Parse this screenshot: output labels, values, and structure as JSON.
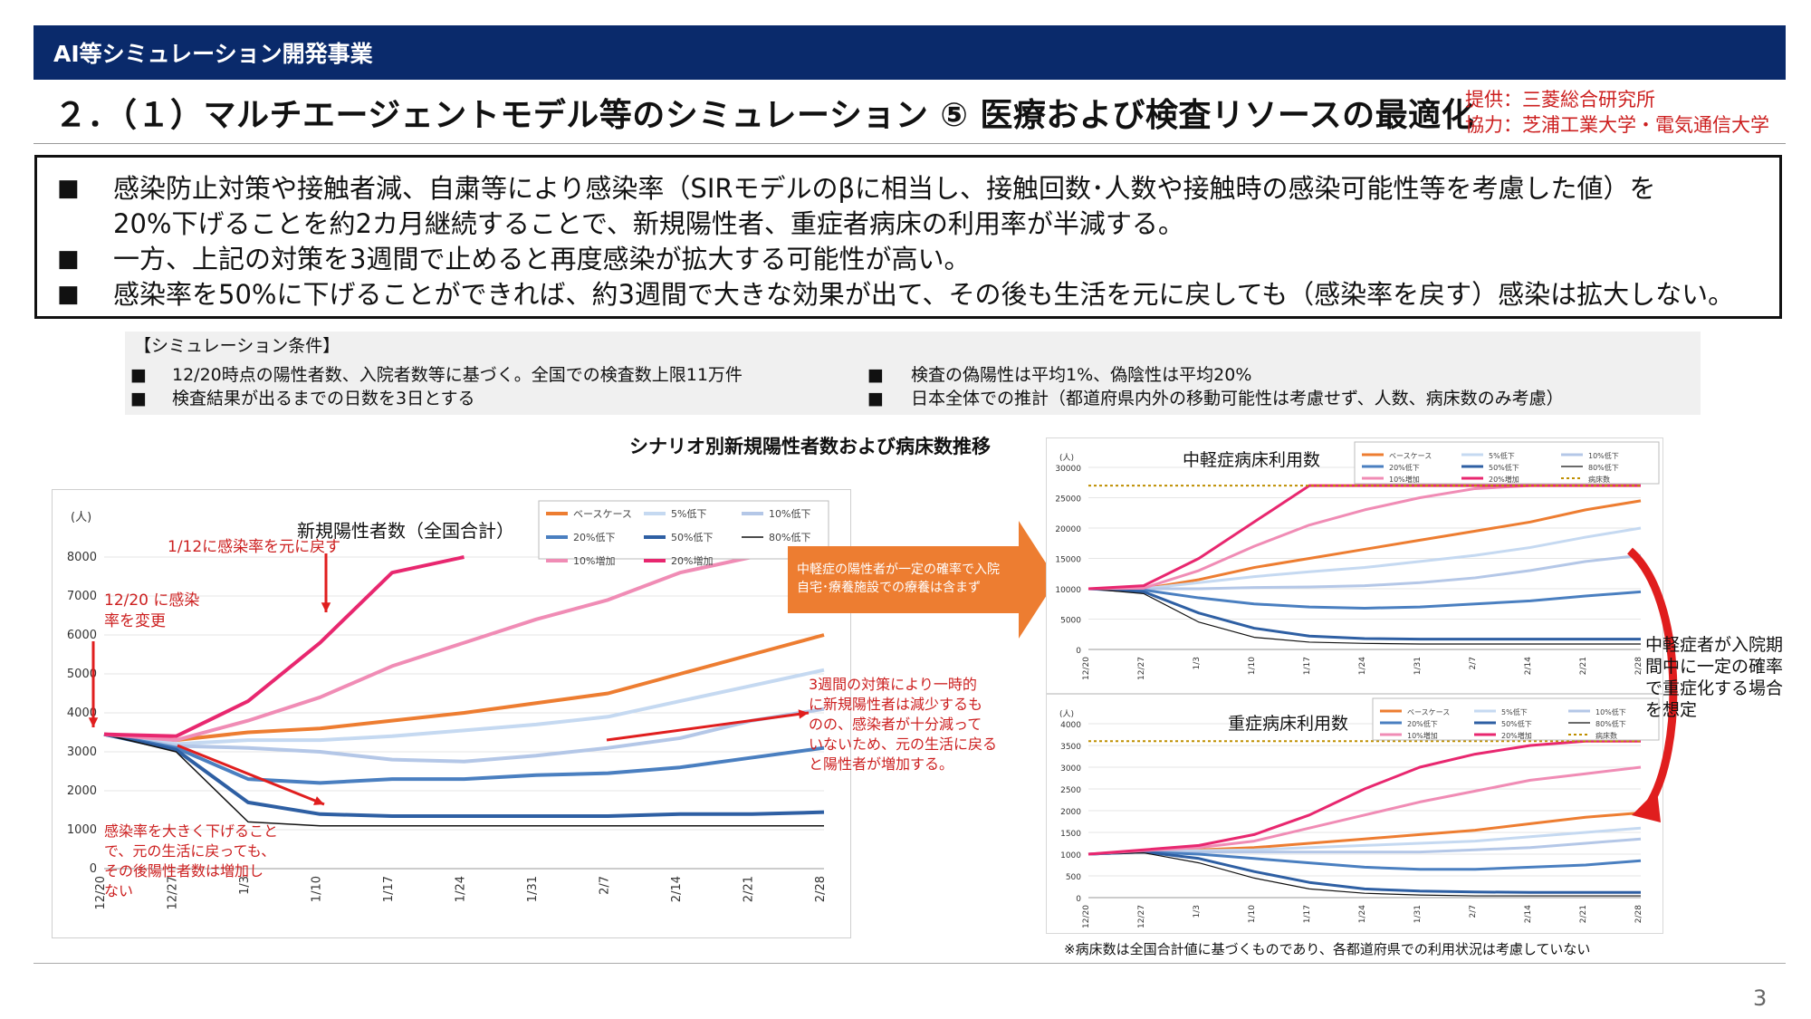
{
  "header": {
    "label": "AI等シミュレーション開発事業"
  },
  "title": "２．（１）マルチエージェントモデル等のシミュレーション ⑤ 医療および検査リソースの最適化",
  "provider": {
    "line1": "提供：三菱総合研究所",
    "line2": "協力：芝浦工業大学・電気通信大学"
  },
  "summary": {
    "bullet": "■",
    "b1_line1": "感染防止対策や接触者減、自粛等により感染率（SIRモデルのβに相当し、接触回数･人数や接触時の感染可能性等を考慮した値）を",
    "b1_line2": "20%下げることを約2カ月継続することで、新規陽性者、重症者病床の利用率が半減する。",
    "b2": "一方、上記の対策を3週間で止めると再度感染が拡大する可能性が高い。",
    "b3": "感染率を50%に下げることができれば、約3週間で大きな効果が出て、その後も生活を元に戻しても（感染率を戻す）感染は拡大しない。"
  },
  "conditions": {
    "heading": "【シミュレーション条件】",
    "c1": "12/20時点の陽性者数、入院者数等に基づく。全国での検査数上限11万件",
    "c2": "検査結果が出るまでの日数を3日とする",
    "c3": "検査の偽陽性は平均1%、偽陰性は平均20%",
    "c4": "日本全体での推計（都道府県内外の移動可能性は考慮せず、人数、病床数のみ考慮）"
  },
  "scenario_title": "シナリオ別新規陽性者数および病床数推移",
  "arrow_text": {
    "line1": "中軽症の陽性者が一定の確率で入院",
    "line2": "自宅･療養施設での療養は含まず"
  },
  "annotations": {
    "a1": "1/12に感染率を元に戻す",
    "a2_line1": "12/20 に感染",
    "a2_line2": "率を変更",
    "a3_line1": "3週間の対策により一時的",
    "a3_line2": "に新規陽性者は減少するも",
    "a3_line3": "のの、感染者が十分減って",
    "a3_line4": "いないため、元の生活に戻る",
    "a3_line5": "と陽性者が増加する。",
    "a4_line1": "感染率を大きく下げること",
    "a4_line2": "で、元の生活に戻っても、",
    "a4_line3": "その後陽性者数は増加し",
    "a4_line4": "ない"
  },
  "right_note": {
    "line1": "中軽症者が入院期",
    "line2": "間中に一定の確率",
    "line3": "で重症化する場合",
    "line4": "を想定"
  },
  "footnote": "※病床数は全国合計値に基づくものであり、各都道府県での利用状況は考慮していない",
  "page_number": "3",
  "colors": {
    "header_bg": "#0a2a6b",
    "annotation_red": "#cc1f1f",
    "arrow_orange": "#ed7d31"
  },
  "chart_data": [
    {
      "type": "line",
      "title": "新規陽性者数（全国合計）",
      "ylabel": "(人)",
      "ylim": [
        0,
        8000
      ],
      "yticks": [
        "0",
        "1000",
        "2000",
        "3000",
        "4000",
        "5000",
        "6000",
        "7000",
        "8000"
      ],
      "x_ticks": [
        "12/20",
        "12/27",
        "1/3",
        "1/10",
        "1/17",
        "1/24",
        "1/31",
        "2/7",
        "2/14",
        "2/21",
        "2/28"
      ],
      "series": [
        {
          "name": "ベースケース",
          "color": "#ed7d31",
          "width": 4,
          "values": [
            3450,
            3300,
            3500,
            3600,
            3800,
            4000,
            4250,
            4500,
            5000,
            5500,
            6000
          ]
        },
        {
          "name": "5%低下",
          "color": "#c5d9f1",
          "width": 4,
          "values": [
            3450,
            3200,
            3300,
            3300,
            3400,
            3550,
            3700,
            3900,
            4300,
            4700,
            5100
          ]
        },
        {
          "name": "10%低下",
          "color": "#b4c7e7",
          "width": 4,
          "values": [
            3450,
            3150,
            3100,
            3000,
            2800,
            2750,
            2900,
            3100,
            3350,
            3800,
            4100
          ]
        },
        {
          "name": "20%低下",
          "color": "#4a7fc0",
          "width": 4,
          "values": [
            3450,
            3100,
            2300,
            2200,
            2300,
            2300,
            2400,
            2450,
            2600,
            2850,
            3100
          ]
        },
        {
          "name": "50%低下",
          "color": "#2e5fa3",
          "width": 4,
          "values": [
            3450,
            3050,
            1700,
            1400,
            1350,
            1350,
            1350,
            1350,
            1400,
            1400,
            1450
          ]
        },
        {
          "name": "80%低下",
          "color": "#111111",
          "width": 1.5,
          "values": [
            3450,
            3000,
            1200,
            1100,
            1100,
            1100,
            1100,
            1100,
            1100,
            1100,
            1100
          ]
        },
        {
          "name": "10%増加",
          "color": "#f08cb5",
          "width": 4,
          "values": [
            3450,
            3300,
            3800,
            4400,
            5200,
            5800,
            6400,
            6900,
            7600,
            8000,
            null
          ]
        },
        {
          "name": "20%増加",
          "color": "#e8276f",
          "width": 4,
          "values": [
            3450,
            3400,
            4300,
            5800,
            7600,
            8000,
            null,
            null,
            null,
            null,
            null
          ]
        }
      ]
    },
    {
      "type": "line",
      "title": "中軽症病床利用数",
      "ylabel": "(人)",
      "ylim": [
        0,
        30000
      ],
      "yticks": [
        "0",
        "5000",
        "10000",
        "15000",
        "20000",
        "25000",
        "30000"
      ],
      "x_ticks": [
        "12/20",
        "12/27",
        "1/3",
        "1/10",
        "1/17",
        "1/24",
        "1/31",
        "2/7",
        "2/14",
        "2/21",
        "2/28"
      ],
      "capacity": 27000,
      "series": [
        {
          "name": "ベースケース",
          "color": "#ed7d31",
          "width": 3,
          "values": [
            10000,
            10000,
            11500,
            13500,
            15000,
            16500,
            18000,
            19500,
            21000,
            23000,
            24500
          ]
        },
        {
          "name": "5%低下",
          "color": "#c5d9f1",
          "width": 3,
          "values": [
            10000,
            10000,
            11000,
            12000,
            12800,
            13500,
            14500,
            15500,
            16800,
            18500,
            20000
          ]
        },
        {
          "name": "10%低下",
          "color": "#b4c7e7",
          "width": 3,
          "values": [
            10000,
            10000,
            10000,
            10200,
            10300,
            10500,
            11000,
            11800,
            13000,
            14500,
            15500
          ]
        },
        {
          "name": "20%低下",
          "color": "#4a7fc0",
          "width": 3,
          "values": [
            10000,
            9800,
            8500,
            7500,
            7000,
            6800,
            7000,
            7500,
            8000,
            8800,
            9500
          ]
        },
        {
          "name": "50%低下",
          "color": "#2e5fa3",
          "width": 3,
          "values": [
            10000,
            9500,
            6000,
            3500,
            2200,
            1800,
            1700,
            1700,
            1700,
            1700,
            1700
          ]
        },
        {
          "name": "80%低下",
          "color": "#111111",
          "width": 1.2,
          "values": [
            10000,
            9200,
            4500,
            2000,
            1200,
            1000,
            900,
            900,
            900,
            900,
            900
          ]
        },
        {
          "name": "10%増加",
          "color": "#f08cb5",
          "width": 3,
          "values": [
            10000,
            10100,
            13000,
            17000,
            20500,
            23000,
            25000,
            26500,
            27000,
            null,
            null
          ]
        },
        {
          "name": "20%増加",
          "color": "#e8276f",
          "width": 3,
          "values": [
            10000,
            10500,
            15000,
            21000,
            27000,
            27000,
            27000,
            27000,
            27000,
            27000,
            27000
          ]
        },
        {
          "name": "病床数",
          "color": "#bf8f00",
          "width": 2,
          "dash": true,
          "values": [
            27000,
            27000,
            27000,
            27000,
            27000,
            27000,
            27000,
            27000,
            27000,
            27000,
            27000
          ]
        }
      ]
    },
    {
      "type": "line",
      "title": "重症病床利用数",
      "ylabel": "(人)",
      "ylim": [
        0,
        4000
      ],
      "yticks": [
        "0",
        "500",
        "1000",
        "1500",
        "2000",
        "2500",
        "3000",
        "3500",
        "4000"
      ],
      "x_ticks": [
        "12/20",
        "12/27",
        "1/3",
        "1/10",
        "1/17",
        "1/24",
        "1/31",
        "2/7",
        "2/14",
        "2/21",
        "2/28"
      ],
      "capacity": 3600,
      "series": [
        {
          "name": "ベースケース",
          "color": "#ed7d31",
          "width": 3,
          "values": [
            1000,
            1050,
            1100,
            1150,
            1250,
            1350,
            1450,
            1550,
            1700,
            1850,
            1950
          ]
        },
        {
          "name": "5%低下",
          "color": "#c5d9f1",
          "width": 3,
          "values": [
            1000,
            1050,
            1080,
            1100,
            1150,
            1200,
            1250,
            1300,
            1400,
            1500,
            1600
          ]
        },
        {
          "name": "10%低下",
          "color": "#b4c7e7",
          "width": 3,
          "values": [
            1000,
            1050,
            1050,
            1050,
            1050,
            1050,
            1050,
            1100,
            1150,
            1250,
            1350
          ]
        },
        {
          "name": "20%低下",
          "color": "#4a7fc0",
          "width": 3,
          "values": [
            1000,
            1050,
            1000,
            900,
            800,
            700,
            650,
            650,
            700,
            750,
            850
          ]
        },
        {
          "name": "50%低下",
          "color": "#2e5fa3",
          "width": 3,
          "values": [
            1000,
            1050,
            900,
            600,
            350,
            200,
            150,
            130,
            120,
            120,
            120
          ]
        },
        {
          "name": "80%低下",
          "color": "#111111",
          "width": 1.2,
          "values": [
            1000,
            1030,
            800,
            450,
            200,
            100,
            60,
            40,
            40,
            40,
            40
          ]
        },
        {
          "name": "10%増加",
          "color": "#f08cb5",
          "width": 3,
          "values": [
            1000,
            1080,
            1150,
            1300,
            1600,
            1900,
            2200,
            2450,
            2700,
            2850,
            3000
          ]
        },
        {
          "name": "20%増加",
          "color": "#e8276f",
          "width": 3,
          "values": [
            1000,
            1100,
            1200,
            1450,
            1900,
            2500,
            3000,
            3300,
            3500,
            3600,
            3600
          ]
        },
        {
          "name": "病床数",
          "color": "#bf8f00",
          "width": 2,
          "dash": true,
          "values": [
            3600,
            3600,
            3600,
            3600,
            3600,
            3600,
            3600,
            3600,
            3600,
            3600,
            3600
          ]
        }
      ]
    }
  ]
}
